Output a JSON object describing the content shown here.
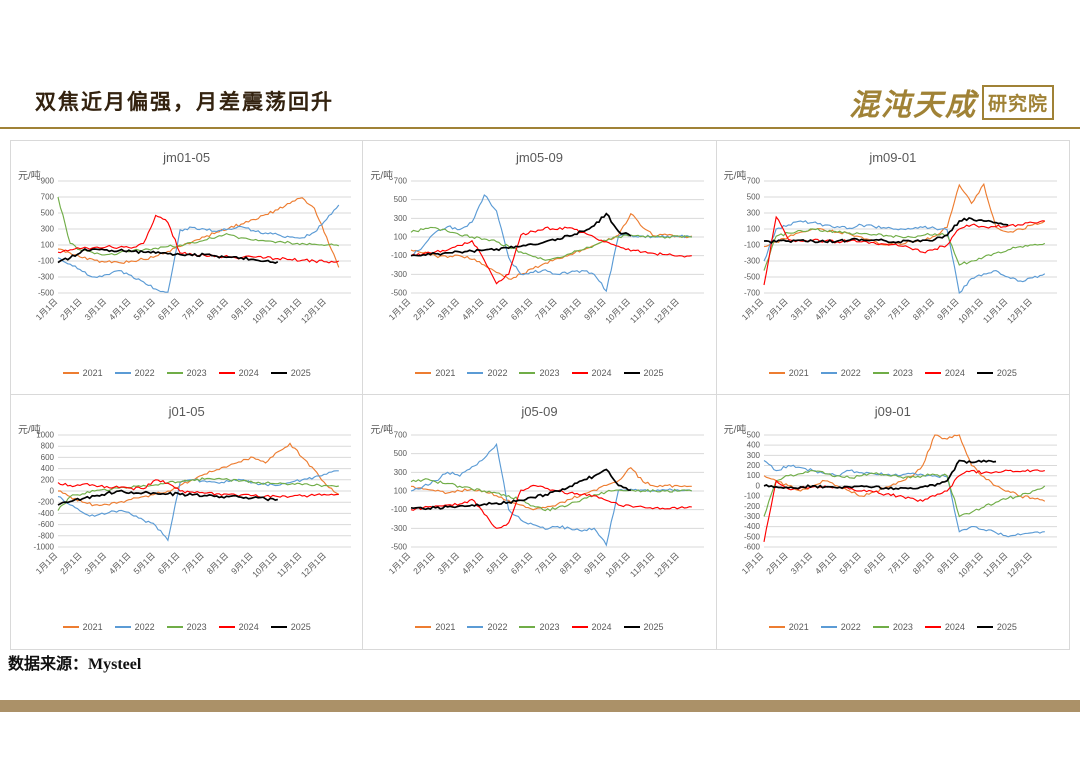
{
  "slide": {
    "title": "双焦近月偏强，月差震荡回升",
    "logo_main": "混沌天成",
    "logo_box": "研究院",
    "source_label": "数据来源：",
    "source_value": "Mysteel"
  },
  "colors": {
    "accent_gold": "#a08236",
    "footer_bar": "#ab9168",
    "grid_line": "#d9d9d9",
    "text_gray": "#595959"
  },
  "legend": [
    {
      "label": "2021",
      "color": "#ED7D31"
    },
    {
      "label": "2022",
      "color": "#5B9BD5"
    },
    {
      "label": "2023",
      "color": "#70AD47"
    },
    {
      "label": "2024",
      "color": "#FF0000"
    },
    {
      "label": "2025",
      "color": "#000000"
    }
  ],
  "chart_data": [
    {
      "type": "line",
      "title": "jm01-05",
      "xlabel": "",
      "ylabel": "元/吨",
      "ylim": [
        -500,
        900
      ],
      "ytick_step": 200,
      "grid": true,
      "legend_position": "bottom",
      "categories": [
        "1月1日",
        "2月1日",
        "3月1日",
        "4月1日",
        "5月1日",
        "6月1日",
        "7月1日",
        "8月1日",
        "9月1日",
        "10月1日",
        "11月1日",
        "12月1日"
      ],
      "sampling": "semi-monthly estimates",
      "series": [
        {
          "name": "2021",
          "values": [
            50,
            0,
            -60,
            -90,
            -110,
            -120,
            -100,
            -80,
            -40,
            20,
            80,
            140,
            200,
            260,
            310,
            360,
            420,
            480,
            540,
            620,
            690,
            560,
            200,
            -180
          ]
        },
        {
          "name": "2022",
          "values": [
            -60,
            -140,
            -230,
            -300,
            -270,
            -220,
            -280,
            -360,
            -450,
            -490,
            290,
            320,
            300,
            270,
            300,
            330,
            280,
            250,
            230,
            200,
            190,
            260,
            420,
            600
          ]
        },
        {
          "name": "2023",
          "values": [
            700,
            120,
            30,
            -10,
            -20,
            0,
            20,
            40,
            60,
            80,
            100,
            130,
            160,
            200,
            230,
            190,
            160,
            150,
            140,
            130,
            120,
            110,
            100,
            90
          ]
        },
        {
          "name": "2024",
          "values": [
            10,
            40,
            60,
            70,
            80,
            70,
            60,
            120,
            470,
            380,
            0,
            -20,
            -30,
            -40,
            -50,
            -60,
            -50,
            -60,
            -70,
            -80,
            -90,
            -100,
            -110,
            -100
          ]
        },
        {
          "name": "2025",
          "values": [
            -120,
            -60,
            30,
            50,
            40,
            30,
            20,
            10,
            0,
            -10,
            -20,
            -30,
            -20,
            -40,
            -50,
            -60,
            -80,
            -100,
            -110,
            null,
            null,
            null,
            null,
            null
          ]
        }
      ]
    },
    {
      "type": "line",
      "title": "jm05-09",
      "xlabel": "",
      "ylabel": "元/吨",
      "ylim": [
        -500,
        700
      ],
      "ytick_step": 200,
      "grid": true,
      "legend_position": "bottom",
      "categories": [
        "1月1日",
        "2月1日",
        "3月1日",
        "4月1日",
        "5月1日",
        "6月1日",
        "7月1日",
        "8月1日",
        "9月1日",
        "10月1日",
        "11月1日",
        "12月1日"
      ],
      "sampling": "semi-monthly estimates",
      "series": [
        {
          "name": "2021",
          "values": [
            -40,
            -70,
            -100,
            -120,
            -100,
            -140,
            -200,
            -280,
            -350,
            -300,
            -240,
            -180,
            -130,
            -90,
            -40,
            10,
            60,
            120,
            350,
            200,
            110,
            120,
            100,
            110
          ]
        },
        {
          "name": "2022",
          "values": [
            -100,
            0,
            150,
            210,
            180,
            260,
            550,
            380,
            -120,
            -300,
            -280,
            -250,
            -300,
            -280,
            -260,
            -300,
            -480,
            110,
            120,
            110,
            100,
            110,
            105,
            100
          ]
        },
        {
          "name": "2023",
          "values": [
            150,
            180,
            200,
            160,
            120,
            100,
            80,
            50,
            0,
            -60,
            -110,
            -150,
            -120,
            -80,
            -40,
            10,
            60,
            100,
            120,
            110,
            100,
            100,
            110,
            100
          ]
        },
        {
          "name": "2024",
          "values": [
            -100,
            -80,
            -60,
            -40,
            10,
            60,
            -150,
            -400,
            -300,
            120,
            160,
            200,
            180,
            200,
            150,
            100,
            50,
            0,
            -50,
            -60,
            -80,
            -90,
            -100,
            -100
          ]
        },
        {
          "name": "2025",
          "values": [
            -100,
            -90,
            -80,
            -70,
            -60,
            -50,
            -40,
            -30,
            -20,
            0,
            20,
            50,
            80,
            110,
            160,
            220,
            350,
            160,
            110,
            null,
            null,
            null,
            null,
            null
          ]
        }
      ]
    },
    {
      "type": "line",
      "title": "jm09-01",
      "xlabel": "",
      "ylabel": "元/吨",
      "ylim": [
        -700,
        700
      ],
      "ytick_step": 200,
      "grid": true,
      "legend_position": "bottom",
      "categories": [
        "1月1日",
        "2月1日",
        "3月1日",
        "4月1日",
        "5月1日",
        "6月1日",
        "7月1日",
        "8月1日",
        "9月1日",
        "10月1日",
        "11月1日",
        "12月1日"
      ],
      "sampling": "semi-monthly estimates",
      "series": [
        {
          "name": "2021",
          "values": [
            -120,
            -60,
            0,
            60,
            100,
            80,
            60,
            40,
            0,
            -50,
            -100,
            -80,
            -60,
            -40,
            10,
            120,
            650,
            420,
            660,
            120,
            60,
            100,
            150,
            200
          ]
        },
        {
          "name": "2022",
          "values": [
            -300,
            100,
            150,
            200,
            180,
            150,
            130,
            110,
            150,
            130,
            110,
            90,
            100,
            120,
            110,
            90,
            -700,
            -520,
            -460,
            -420,
            -500,
            -550,
            -510,
            -460
          ]
        },
        {
          "name": "2023",
          "values": [
            -420,
            10,
            50,
            80,
            100,
            80,
            60,
            50,
            40,
            30,
            20,
            10,
            0,
            20,
            40,
            30,
            -350,
            -300,
            -250,
            -200,
            -160,
            -120,
            -100,
            -80
          ]
        },
        {
          "name": "2024",
          "values": [
            -600,
            250,
            -30,
            -50,
            -40,
            -50,
            -60,
            -50,
            -60,
            -70,
            -90,
            -110,
            -140,
            -190,
            -150,
            -100,
            100,
            150,
            130,
            130,
            140,
            150,
            180,
            200
          ]
        },
        {
          "name": "2025",
          "values": [
            -50,
            -60,
            -50,
            -40,
            -50,
            -60,
            -50,
            -40,
            -30,
            -40,
            -50,
            -60,
            -50,
            -40,
            -30,
            20,
            200,
            230,
            200,
            180,
            150,
            null,
            null,
            null
          ]
        }
      ]
    },
    {
      "type": "line",
      "title": "j01-05",
      "xlabel": "",
      "ylabel": "元/吨",
      "ylim": [
        -1000,
        1000
      ],
      "ytick_step": 200,
      "grid": true,
      "legend_position": "bottom",
      "categories": [
        "1月1日",
        "2月1日",
        "3月1日",
        "4月1日",
        "5月1日",
        "6月1日",
        "7月1日",
        "8月1日",
        "9月1日",
        "10月1日",
        "11月1日",
        "12月1日"
      ],
      "sampling": "semi-monthly estimates",
      "series": [
        {
          "name": "2021",
          "values": [
            0,
            -100,
            -200,
            -250,
            -240,
            -200,
            -150,
            -100,
            -50,
            0,
            100,
            200,
            300,
            380,
            450,
            520,
            600,
            500,
            700,
            850,
            600,
            380,
            100,
            -60
          ]
        },
        {
          "name": "2022",
          "values": [
            -100,
            -250,
            -380,
            -450,
            -400,
            -350,
            -420,
            -520,
            -620,
            -880,
            150,
            200,
            180,
            150,
            170,
            200,
            150,
            120,
            100,
            150,
            200,
            250,
            300,
            360
          ]
        },
        {
          "name": "2023",
          "values": [
            -350,
            -100,
            -50,
            0,
            10,
            50,
            60,
            100,
            110,
            150,
            160,
            200,
            210,
            220,
            200,
            180,
            150,
            140,
            130,
            120,
            110,
            100,
            100,
            90
          ]
        },
        {
          "name": "2024",
          "values": [
            150,
            100,
            120,
            100,
            80,
            60,
            50,
            40,
            200,
            140,
            0,
            -20,
            -40,
            -50,
            -60,
            -70,
            -80,
            -90,
            -100,
            -100,
            -90,
            -80,
            -70,
            -60
          ]
        },
        {
          "name": "2025",
          "values": [
            -250,
            -190,
            -140,
            -90,
            -40,
            0,
            -20,
            -30,
            -40,
            -50,
            -60,
            -70,
            -80,
            -90,
            -100,
            -110,
            -120,
            -140,
            -150,
            null,
            null,
            null,
            null,
            null
          ]
        }
      ]
    },
    {
      "type": "line",
      "title": "j05-09",
      "xlabel": "",
      "ylabel": "元/吨",
      "ylim": [
        -500,
        700
      ],
      "ytick_step": 200,
      "grid": true,
      "legend_position": "bottom",
      "categories": [
        "1月1日",
        "2月1日",
        "3月1日",
        "4月1日",
        "5月1日",
        "6月1日",
        "7月1日",
        "8月1日",
        "9月1日",
        "10月1日",
        "11月1日",
        "12月1日"
      ],
      "sampling": "semi-monthly estimates",
      "series": [
        {
          "name": "2021",
          "values": [
            150,
            120,
            100,
            80,
            100,
            120,
            100,
            50,
            0,
            -50,
            -100,
            -80,
            -40,
            10,
            60,
            110,
            160,
            210,
            350,
            200,
            150,
            160,
            150,
            150
          ]
        },
        {
          "name": "2022",
          "values": [
            100,
            150,
            210,
            300,
            260,
            360,
            450,
            600,
            -100,
            -210,
            -260,
            -310,
            -280,
            -300,
            -330,
            -300,
            -480,
            110,
            120,
            110,
            100,
            110,
            105,
            100
          ]
        },
        {
          "name": "2023",
          "values": [
            200,
            220,
            200,
            180,
            150,
            120,
            100,
            80,
            50,
            0,
            -60,
            -110,
            -80,
            -40,
            10,
            60,
            90,
            110,
            110,
            100,
            100,
            105,
            100,
            100
          ]
        },
        {
          "name": "2024",
          "values": [
            -100,
            -80,
            -60,
            -50,
            -40,
            10,
            -150,
            -300,
            -240,
            110,
            160,
            130,
            100,
            80,
            60,
            50,
            0,
            -50,
            -60,
            -70,
            -80,
            -90,
            -80,
            -70
          ]
        },
        {
          "name": "2025",
          "values": [
            -80,
            -90,
            -80,
            -70,
            -60,
            -50,
            -40,
            -30,
            -20,
            0,
            30,
            60,
            100,
            150,
            210,
            260,
            330,
            160,
            110,
            null,
            null,
            null,
            null,
            null
          ]
        }
      ]
    },
    {
      "type": "line",
      "title": "j09-01",
      "xlabel": "",
      "ylabel": "元/吨",
      "ylim": [
        -600,
        500
      ],
      "ytick_step": 100,
      "grid": true,
      "legend_position": "bottom",
      "categories": [
        "1月1日",
        "2月1日",
        "3月1日",
        "4月1日",
        "5月1日",
        "6月1日",
        "7月1日",
        "8月1日",
        "9月1日",
        "10月1日",
        "11月1日",
        "12月1日"
      ],
      "sampling": "semi-monthly estimates",
      "series": [
        {
          "name": "2021",
          "values": [
            100,
            50,
            0,
            -50,
            0,
            50,
            0,
            -50,
            -100,
            -60,
            -10,
            40,
            90,
            200,
            500,
            460,
            500,
            200,
            90,
            0,
            -50,
            -100,
            -120,
            -150
          ]
        },
        {
          "name": "2022",
          "values": [
            250,
            150,
            200,
            180,
            150,
            120,
            100,
            150,
            130,
            120,
            110,
            100,
            120,
            110,
            100,
            90,
            -450,
            -400,
            -430,
            -460,
            -500,
            -480,
            -460,
            -450
          ]
        },
        {
          "name": "2023",
          "values": [
            -300,
            50,
            100,
            120,
            150,
            120,
            100,
            80,
            100,
            120,
            110,
            90,
            80,
            100,
            110,
            100,
            -300,
            -260,
            -210,
            -160,
            -120,
            -100,
            -50,
            0
          ]
        },
        {
          "name": "2024",
          "values": [
            -550,
            50,
            -30,
            -20,
            -10,
            0,
            -20,
            -30,
            -50,
            -60,
            -80,
            -100,
            -120,
            -150,
            -100,
            -50,
            100,
            150,
            130,
            140,
            150,
            140,
            150,
            150
          ]
        },
        {
          "name": "2025",
          "values": [
            0,
            -10,
            -20,
            -10,
            0,
            -10,
            -20,
            -10,
            0,
            -10,
            -20,
            -30,
            -20,
            -10,
            0,
            50,
            250,
            230,
            250,
            240,
            null,
            null,
            null,
            null
          ]
        }
      ]
    }
  ]
}
